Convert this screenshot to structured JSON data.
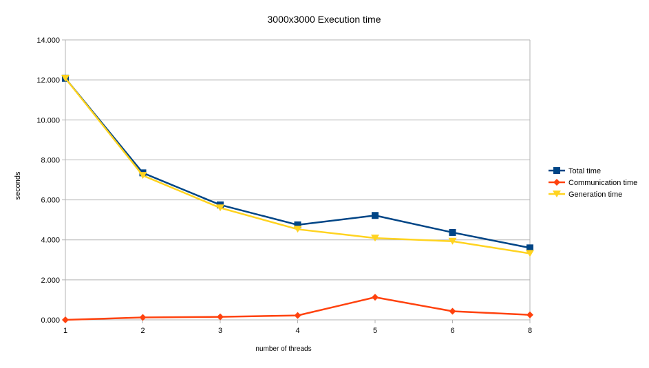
{
  "chart_data": {
    "type": "line",
    "title": "3000x3000 Execution time",
    "xlabel": "number of threads",
    "ylabel": "seconds",
    "categories": [
      "1",
      "2",
      "3",
      "4",
      "5",
      "6",
      "8"
    ],
    "y_ticks": [
      "0.000",
      "2.000",
      "4.000",
      "6.000",
      "8.000",
      "10.000",
      "12.000",
      "14.000"
    ],
    "ylim": [
      0,
      14
    ],
    "grid": true,
    "legend_position": "right",
    "series": [
      {
        "name": "Total time",
        "color": "#004586",
        "marker": "square",
        "values": [
          12.08,
          7.35,
          5.75,
          4.75,
          5.22,
          4.37,
          3.6
        ]
      },
      {
        "name": "Communication time",
        "color": "#ff420e",
        "marker": "diamond",
        "values": [
          0.0,
          0.12,
          0.15,
          0.22,
          1.13,
          0.43,
          0.25
        ]
      },
      {
        "name": "Generation time",
        "color": "#ffd320",
        "marker": "triangle-down",
        "values": [
          12.08,
          7.22,
          5.6,
          4.53,
          4.09,
          3.93,
          3.32
        ]
      }
    ]
  }
}
